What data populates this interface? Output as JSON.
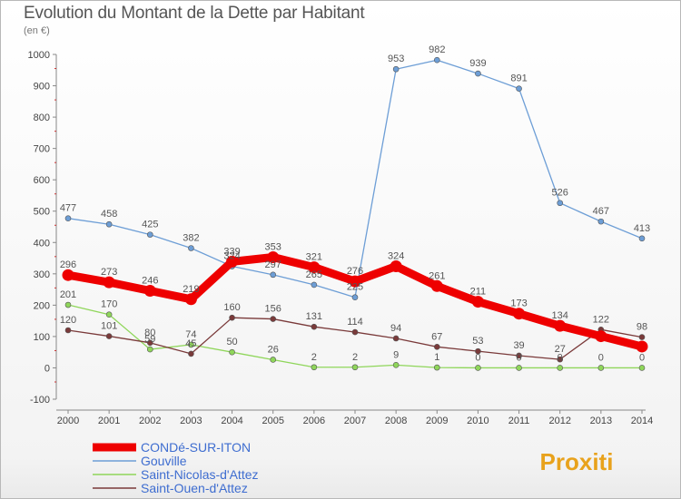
{
  "header": {
    "title": "Evolution du Montant de la Dette par Habitant",
    "subtitle": "(en €)"
  },
  "branding": {
    "logo_text": "Proxiti"
  },
  "chart_data": {
    "type": "line",
    "title": "Evolution du Montant de la Dette par Habitant",
    "subtitle": "(en €)",
    "xlabel": "",
    "ylabel": "",
    "x": [
      2000,
      2001,
      2002,
      2003,
      2004,
      2005,
      2006,
      2007,
      2008,
      2009,
      2010,
      2011,
      2012,
      2013,
      2014
    ],
    "ylim": [
      -100,
      1000
    ],
    "yticks": [
      -100,
      0,
      100,
      200,
      300,
      400,
      500,
      600,
      700,
      800,
      900,
      1000
    ],
    "grid": false,
    "legend_position": "bottom-left",
    "series": [
      {
        "name": "CONDé-SUR-ITON",
        "color": "#ee0000",
        "values": [
          296,
          273,
          246,
          219,
          339,
          353,
          321,
          276,
          324,
          261,
          211,
          173,
          134,
          101,
          68
        ],
        "labels": [
          "296",
          "273",
          "246",
          "219",
          "339",
          "353",
          "321",
          "276",
          "324",
          "261",
          "211",
          "173",
          "134",
          "",
          ""
        ]
      },
      {
        "name": "Gouville",
        "color": "#6d9ed6",
        "values": [
          477,
          458,
          425,
          382,
          324,
          297,
          265,
          225,
          953,
          982,
          939,
          891,
          526,
          467,
          413
        ],
        "labels": [
          "477",
          "458",
          "425",
          "382",
          "324",
          "297",
          "265",
          "225",
          "953",
          "982",
          "939",
          "891",
          "526",
          "467",
          "413"
        ]
      },
      {
        "name": "Saint-Nicolas-d'Attez",
        "color": "#8fd65a",
        "values": [
          201,
          170,
          59,
          74,
          50,
          26,
          2,
          2,
          9,
          1,
          0,
          0,
          0,
          0,
          0
        ],
        "labels": [
          "201",
          "170",
          "59",
          "74",
          "50",
          "26",
          "2",
          "2",
          "9",
          "1",
          "0",
          "0",
          "0",
          "0",
          "0"
        ]
      },
      {
        "name": "Saint-Ouen-d'Attez",
        "color": "#7a3a3a",
        "values": [
          120,
          101,
          80,
          45,
          160,
          156,
          131,
          114,
          94,
          67,
          53,
          39,
          27,
          122,
          98
        ],
        "labels": [
          "120",
          "101",
          "80",
          "45",
          "160",
          "156",
          "131",
          "114",
          "94",
          "67",
          "53",
          "39",
          "27",
          "122",
          "98"
        ]
      }
    ]
  }
}
